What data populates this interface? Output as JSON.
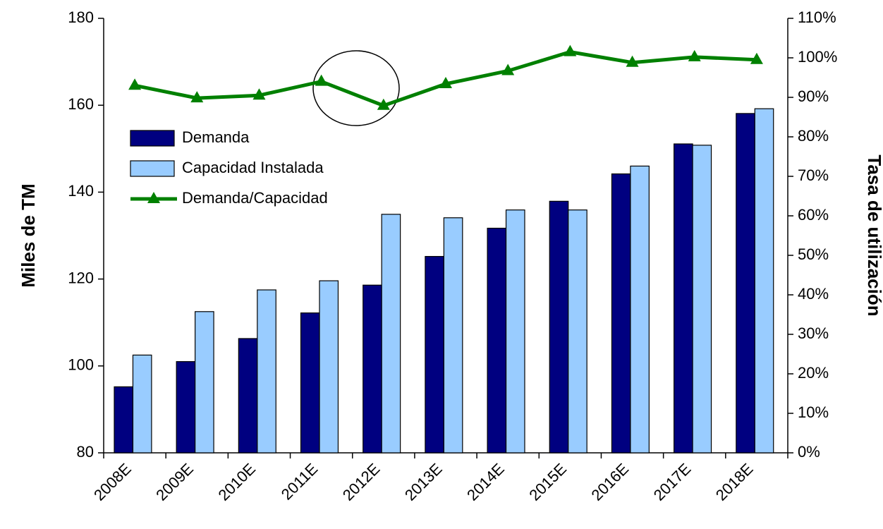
{
  "chart_data": {
    "type": "bar_line",
    "y_label": "Miles de TM",
    "y2_label": "Tasa de utilización",
    "categories": [
      "2008E",
      "2009E",
      "2010E",
      "2011E",
      "2012E",
      "2013E",
      "2014E",
      "2015E",
      "2016E",
      "2017E",
      "2018E"
    ],
    "series": [
      {
        "name": "Demanda",
        "color": "#000080",
        "type": "bar",
        "values": [
          95.2,
          101,
          106.3,
          112.2,
          118.6,
          125.2,
          131.7,
          137.9,
          144.2,
          151.1,
          158.1
        ]
      },
      {
        "name": "Capacidad Instalada",
        "color": "#99ccff",
        "type": "bar",
        "values": [
          102.5,
          112.5,
          117.5,
          119.6,
          134.9,
          134.1,
          135.9,
          135.9,
          146,
          150.8,
          159.2
        ]
      },
      {
        "name": "Demanda/Capacidad",
        "color": "#008000",
        "type": "line",
        "axis": "y2",
        "values": [
          93,
          89.8,
          90.5,
          94,
          87.9,
          93.4,
          96.7,
          101.5,
          98.8,
          100.2,
          99.5
        ]
      }
    ],
    "ylim": [
      80,
      180
    ],
    "yticks": [
      80,
      100,
      120,
      140,
      160,
      180
    ],
    "y2lim": [
      0,
      110
    ],
    "y2ticks": [
      {
        "value": 0,
        "label": "0%"
      },
      {
        "value": 10,
        "label": "10%"
      },
      {
        "value": 20,
        "label": "20%"
      },
      {
        "value": 30,
        "label": "30%"
      },
      {
        "value": 40,
        "label": "40%"
      },
      {
        "value": 50,
        "label": "50%"
      },
      {
        "value": 60,
        "label": "60%"
      },
      {
        "value": 70,
        "label": "70%"
      },
      {
        "value": 80,
        "label": "80%"
      },
      {
        "value": 90,
        "label": "90%"
      },
      {
        "value": 100,
        "label": "100%"
      },
      {
        "value": 110,
        "label": "110%"
      }
    ],
    "legend": "upper left",
    "grid": false
  }
}
